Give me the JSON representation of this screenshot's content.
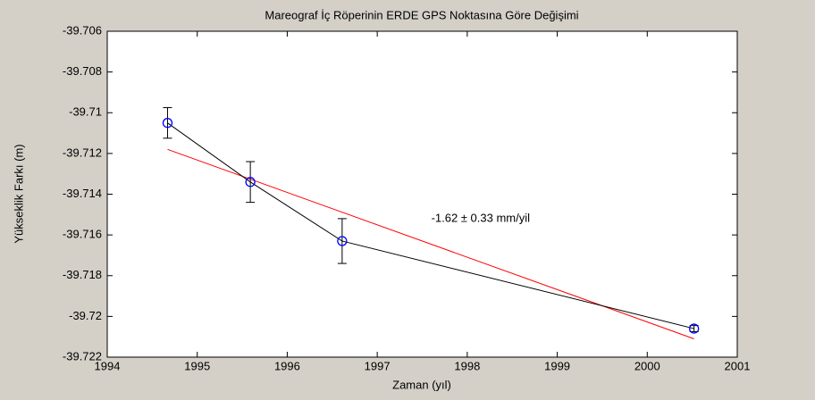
{
  "chart_data": {
    "type": "errorbar",
    "title": "Mareograf İç Röperinin ERDE GPS Noktasına Göre Değişimi",
    "xlabel": "Zaman (yıl)",
    "ylabel": "Yükseklik Farkı (m)",
    "xlim": [
      1994,
      2001
    ],
    "ylim": [
      -39.722,
      -39.706
    ],
    "xticks": [
      1994,
      1995,
      1996,
      1997,
      1998,
      1999,
      2000,
      2001
    ],
    "yticks": [
      -39.706,
      -39.708,
      -39.71,
      -39.712,
      -39.714,
      -39.716,
      -39.718,
      -39.72,
      -39.722
    ],
    "series": [
      {
        "color": "#0000ff",
        "line_color": "#000000",
        "x": [
          1994.67,
          1995.59,
          1996.61,
          2000.52
        ],
        "values": [
          -39.7105,
          -39.7134,
          -39.7163,
          -39.7206
        ],
        "errors": [
          0.00075,
          0.001,
          0.0011,
          0.00015
        ]
      },
      {
        "color": "#ff0000",
        "x": [
          1994.67,
          2000.52
        ],
        "values": [
          -39.7118,
          -39.7211
        ]
      }
    ],
    "annotation": {
      "text": "-1.62 ± 0.33 mm/yil",
      "x": 1997.6,
      "y": -39.7152
    }
  }
}
